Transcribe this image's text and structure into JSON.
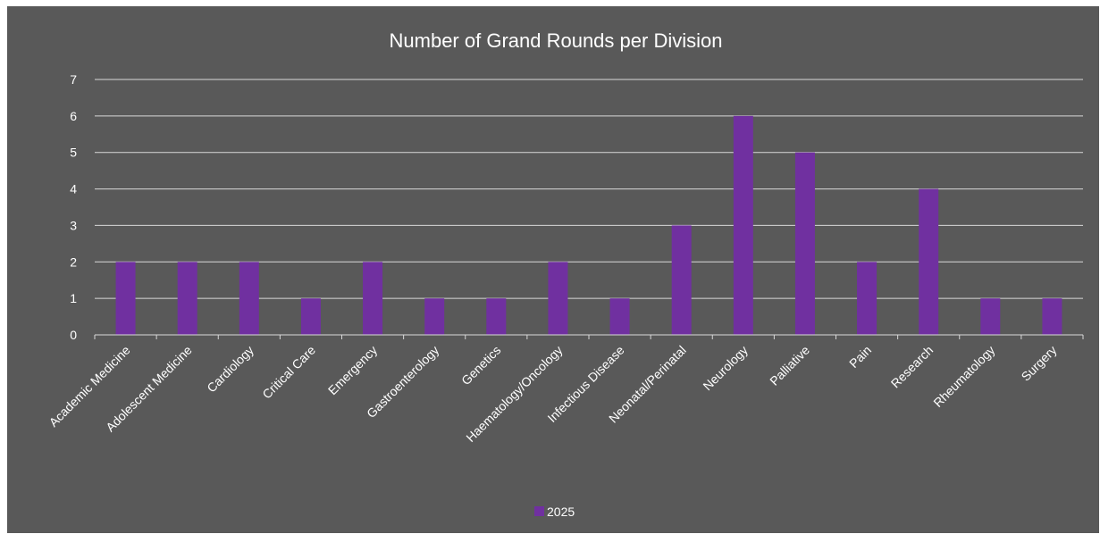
{
  "chart_data": {
    "type": "bar",
    "title": "Number of Grand Rounds per Division",
    "categories": [
      "Academic Medicine",
      "Adolescent Medicine",
      "Cardiology",
      "Critical Care",
      "Emergency",
      "Gastroenterology",
      "Genetics",
      "Haematology/Oncology",
      "Infectious Disease",
      "Neonatal/Perinatal",
      "Neurology",
      "Palliative",
      "Pain",
      "Research",
      "Rheumatology",
      "Surgery"
    ],
    "series": [
      {
        "name": "2025",
        "values": [
          2,
          2,
          2,
          1,
          2,
          1,
          1,
          2,
          1,
          3,
          6,
          5,
          2,
          4,
          1,
          1
        ]
      }
    ],
    "y_ticks": [
      "0",
      "1",
      "2",
      "3",
      "4",
      "5",
      "6",
      "7"
    ],
    "ylim": [
      0,
      7
    ],
    "grid": true,
    "legend_position": "bottom",
    "colors": {
      "background": "#595959",
      "bar": "#7030a0",
      "grid": "#d9d9d9",
      "text": "#ffffff"
    }
  }
}
